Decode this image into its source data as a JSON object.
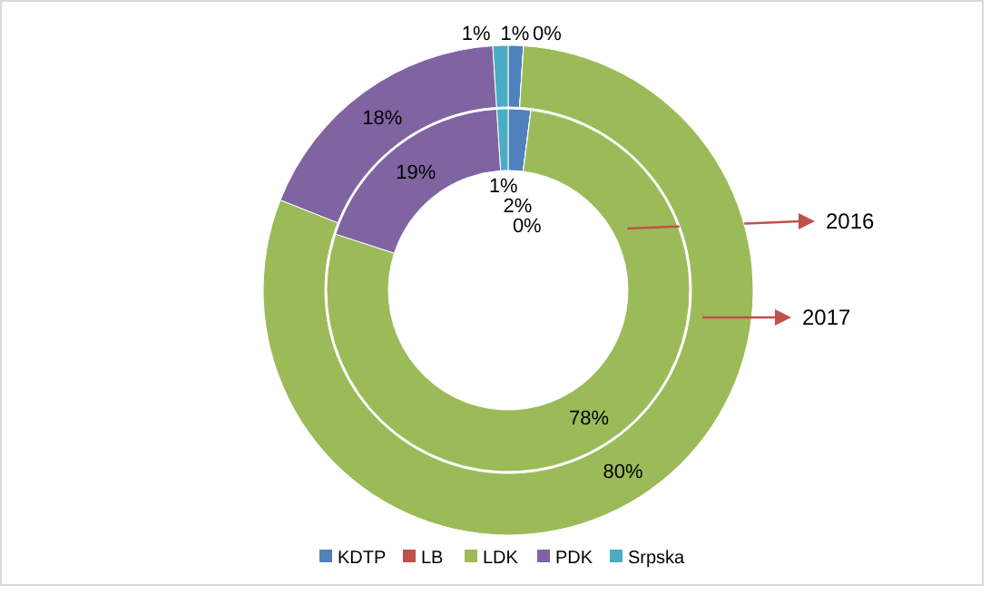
{
  "chart_data": {
    "type": "donut",
    "categories": [
      "KDTP",
      "LB",
      "LDK",
      "PDK",
      "Srpska"
    ],
    "colors": [
      "#4f81bd",
      "#c0504d",
      "#9bbb59",
      "#8064a2",
      "#4bacc6"
    ],
    "series": [
      {
        "name": "2016",
        "values": [
          2,
          0,
          78,
          19,
          1
        ],
        "value_labels": [
          "2%",
          "0%",
          "78%",
          "19%",
          "1%"
        ]
      },
      {
        "name": "2017",
        "values": [
          1,
          0,
          80,
          18,
          1
        ],
        "value_labels": [
          "1%",
          "0%",
          "80%",
          "18%",
          "1%"
        ]
      }
    ],
    "legend": "bottom"
  }
}
